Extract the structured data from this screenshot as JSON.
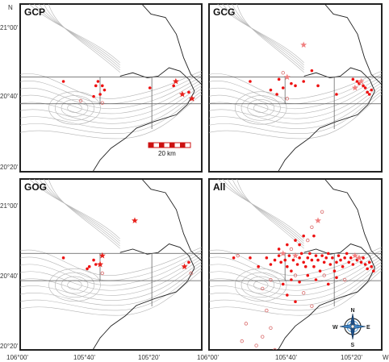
{
  "figure": {
    "lat_ticks": [
      "21°00'",
      "20°40'",
      "20°20'"
    ],
    "lat_hemisphere": "N",
    "lon_ticks": [
      "106°00'",
      "105°40'",
      "105°20'",
      "106°00'",
      "105°40'",
      "105°20'"
    ],
    "lon_hemisphere": "W"
  },
  "panels": [
    {
      "title": "GCP",
      "points": [
        [
          -105.88,
          20.72,
          "dot"
        ],
        [
          -105.73,
          20.7,
          "dot"
        ],
        [
          -105.72,
          20.72,
          "dot"
        ],
        [
          -105.7,
          20.7,
          "dot"
        ],
        [
          -105.69,
          20.68,
          "dot"
        ],
        [
          -105.71,
          20.66,
          "dot"
        ],
        [
          -105.74,
          20.65,
          "dot"
        ],
        [
          -105.48,
          20.69,
          "dot"
        ],
        [
          -105.37,
          20.7,
          "dot"
        ],
        [
          -105.36,
          20.72,
          "star"
        ],
        [
          -105.33,
          20.66,
          "star"
        ],
        [
          -105.3,
          20.67,
          "dot"
        ],
        [
          -105.285,
          20.64,
          "star"
        ],
        [
          -105.7,
          20.62,
          "ring"
        ],
        [
          -105.8,
          20.63,
          "ring"
        ]
      ]
    },
    {
      "title": "GCG",
      "points": [
        [
          -105.88,
          20.72,
          "dot"
        ],
        [
          -105.74,
          20.73,
          "dot"
        ],
        [
          -105.72,
          20.76,
          "ring"
        ],
        [
          -105.7,
          20.74,
          "star"
        ],
        [
          -105.68,
          20.71,
          "dot"
        ],
        [
          -105.72,
          20.69,
          "dot"
        ],
        [
          -105.75,
          20.66,
          "dot"
        ],
        [
          -105.78,
          20.68,
          "dot"
        ],
        [
          -105.66,
          20.7,
          "dot"
        ],
        [
          -105.62,
          20.72,
          "dot"
        ],
        [
          -105.55,
          20.7,
          "dot"
        ],
        [
          -105.46,
          20.66,
          "dot"
        ],
        [
          -105.38,
          20.73,
          "dot"
        ],
        [
          -105.36,
          20.72,
          "dot"
        ],
        [
          -105.35,
          20.71,
          "dot"
        ],
        [
          -105.34,
          20.72,
          "star"
        ],
        [
          -105.33,
          20.7,
          "dot"
        ],
        [
          -105.32,
          20.69,
          "dot"
        ],
        [
          -105.31,
          20.67,
          "dot"
        ],
        [
          -105.3,
          20.66,
          "dot"
        ],
        [
          -105.29,
          20.68,
          "dot"
        ],
        [
          -105.37,
          20.69,
          "star"
        ],
        [
          -105.62,
          20.89,
          "star"
        ],
        [
          -105.58,
          20.77,
          "dot"
        ],
        [
          -105.7,
          20.64,
          "ring"
        ]
      ]
    },
    {
      "title": "GOG",
      "points": [
        [
          -105.88,
          20.72,
          "dot"
        ],
        [
          -105.74,
          20.71,
          "dot"
        ],
        [
          -105.73,
          20.69,
          "dot"
        ],
        [
          -105.7,
          20.73,
          "star"
        ],
        [
          -105.71,
          20.69,
          "star"
        ],
        [
          -105.76,
          20.68,
          "dot"
        ],
        [
          -105.77,
          20.67,
          "dot"
        ],
        [
          -105.55,
          20.89,
          "star"
        ],
        [
          -105.3,
          20.7,
          "dot"
        ],
        [
          -105.32,
          20.68,
          "star"
        ],
        [
          -105.29,
          20.65,
          "ring"
        ],
        [
          -105.7,
          20.65,
          "ring"
        ]
      ]
    },
    {
      "title": "All",
      "points": [
        [
          -105.96,
          20.72,
          "dot"
        ],
        [
          -105.94,
          20.73,
          "ring"
        ],
        [
          -105.88,
          20.72,
          "dot"
        ],
        [
          -105.84,
          20.68,
          "dot"
        ],
        [
          -105.8,
          20.72,
          "dot"
        ],
        [
          -105.78,
          20.69,
          "dot"
        ],
        [
          -105.76,
          20.71,
          "dot"
        ],
        [
          -105.74,
          20.73,
          "dot"
        ],
        [
          -105.73,
          20.7,
          "dot"
        ],
        [
          -105.72,
          20.74,
          "star"
        ],
        [
          -105.71,
          20.71,
          "dot"
        ],
        [
          -105.7,
          20.68,
          "dot"
        ],
        [
          -105.69,
          20.73,
          "dot"
        ],
        [
          -105.68,
          20.66,
          "dot"
        ],
        [
          -105.67,
          20.71,
          "dot"
        ],
        [
          -105.66,
          20.73,
          "star"
        ],
        [
          -105.65,
          20.69,
          "dot"
        ],
        [
          -105.64,
          20.72,
          "dot"
        ],
        [
          -105.63,
          20.74,
          "dot"
        ],
        [
          -105.62,
          20.7,
          "dot"
        ],
        [
          -105.61,
          20.68,
          "dot"
        ],
        [
          -105.6,
          20.72,
          "dot"
        ],
        [
          -105.59,
          20.74,
          "dot"
        ],
        [
          -105.58,
          20.71,
          "dot"
        ],
        [
          -105.57,
          20.68,
          "dot"
        ],
        [
          -105.56,
          20.73,
          "dot"
        ],
        [
          -105.55,
          20.71,
          "dot"
        ],
        [
          -105.54,
          20.66,
          "dot"
        ],
        [
          -105.53,
          20.73,
          "dot"
        ],
        [
          -105.52,
          20.7,
          "dot"
        ],
        [
          -105.51,
          20.72,
          "dot"
        ],
        [
          -105.5,
          20.74,
          "dot"
        ],
        [
          -105.49,
          20.69,
          "dot"
        ],
        [
          -105.48,
          20.72,
          "dot"
        ],
        [
          -105.47,
          20.66,
          "dot"
        ],
        [
          -105.46,
          20.7,
          "dot"
        ],
        [
          -105.45,
          20.73,
          "dot"
        ],
        [
          -105.44,
          20.71,
          "dot"
        ],
        [
          -105.43,
          20.68,
          "dot"
        ],
        [
          -105.42,
          20.72,
          "dot"
        ],
        [
          -105.41,
          20.74,
          "dot"
        ],
        [
          -105.4,
          20.7,
          "dot"
        ],
        [
          -105.39,
          20.72,
          "dot"
        ],
        [
          -105.38,
          20.69,
          "dot"
        ],
        [
          -105.37,
          20.73,
          "star"
        ],
        [
          -105.36,
          20.71,
          "dot"
        ],
        [
          -105.35,
          20.72,
          "star"
        ],
        [
          -105.34,
          20.7,
          "dot"
        ],
        [
          -105.33,
          20.72,
          "dot"
        ],
        [
          -105.32,
          20.69,
          "dot"
        ],
        [
          -105.31,
          20.67,
          "dot"
        ],
        [
          -105.3,
          20.7,
          "dot"
        ],
        [
          -105.29,
          20.68,
          "dot"
        ],
        [
          -105.28,
          20.66,
          "dot"
        ],
        [
          -105.74,
          20.76,
          "dot"
        ],
        [
          -105.7,
          20.78,
          "dot"
        ],
        [
          -105.68,
          20.76,
          "ring"
        ],
        [
          -105.66,
          20.8,
          "dot"
        ],
        [
          -105.64,
          20.78,
          "dot"
        ],
        [
          -105.62,
          20.82,
          "dot"
        ],
        [
          -105.6,
          20.8,
          "ring"
        ],
        [
          -105.57,
          20.82,
          "dot"
        ],
        [
          -105.55,
          20.89,
          "star"
        ],
        [
          -105.58,
          20.86,
          "ring"
        ],
        [
          -105.53,
          20.93,
          "ring"
        ],
        [
          -105.72,
          20.6,
          "dot"
        ],
        [
          -105.68,
          20.62,
          "dot"
        ],
        [
          -105.64,
          20.61,
          "dot"
        ],
        [
          -105.6,
          20.64,
          "dot"
        ],
        [
          -105.56,
          20.62,
          "dot"
        ],
        [
          -105.5,
          20.6,
          "dot"
        ],
        [
          -105.46,
          20.63,
          "dot"
        ],
        [
          -105.42,
          20.62,
          "ring"
        ],
        [
          -105.7,
          20.55,
          "dot"
        ],
        [
          -105.66,
          20.52,
          "dot"
        ],
        [
          -105.62,
          20.56,
          "ring"
        ],
        [
          -105.58,
          20.5,
          "ring"
        ],
        [
          -105.78,
          20.62,
          "ring"
        ],
        [
          -105.82,
          20.58,
          "ring"
        ],
        [
          -105.8,
          20.48,
          "ring"
        ],
        [
          -105.78,
          20.4,
          "ring"
        ],
        [
          -105.82,
          20.36,
          "ring"
        ],
        [
          -105.9,
          20.42,
          "ring"
        ],
        [
          -105.85,
          20.32,
          "ring"
        ],
        [
          -105.76,
          20.3,
          "ring"
        ],
        [
          -105.92,
          20.34,
          "ring"
        ],
        [
          -105.66,
          20.64,
          "ring"
        ],
        [
          -105.52,
          20.64,
          "ring"
        ]
      ]
    }
  ],
  "scale_bar": {
    "label": "20 km"
  },
  "compass": {
    "n": "N",
    "s": "S",
    "e": "E",
    "w": "W"
  },
  "colors": {
    "dot": "#ee1111",
    "star": "#e8201a",
    "star_light": "#f08080",
    "ring": "#d96a6a",
    "contour": "#b5b5b5",
    "coast": "#222222",
    "box": "#555555"
  }
}
